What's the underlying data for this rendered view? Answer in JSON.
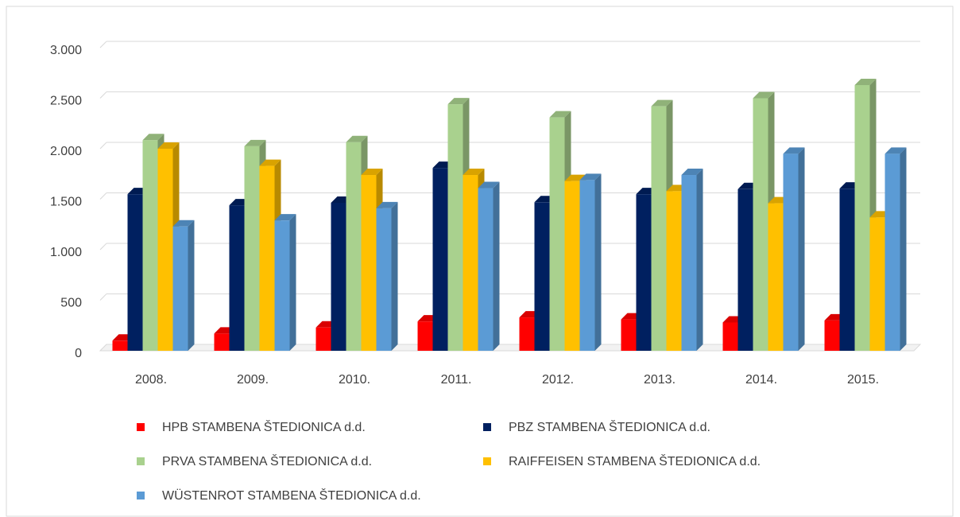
{
  "chart_data": {
    "type": "bar3d",
    "categories": [
      "2008.",
      "2009.",
      "2010.",
      "2011.",
      "2012.",
      "2013.",
      "2014.",
      "2015."
    ],
    "series": [
      {
        "name": "HPB STAMBENA ŠTEDIONICA d.d.",
        "color": "#ff0000",
        "values": [
          100,
          170,
          230,
          290,
          330,
          310,
          280,
          300
        ]
      },
      {
        "name": "PBZ STAMBENA ŠTEDIONICA d.d.",
        "color": "#002060",
        "values": [
          1550,
          1440,
          1465,
          1810,
          1470,
          1550,
          1600,
          1605
        ]
      },
      {
        "name": "PRVA STAMBENA ŠTEDIONICA d.d.",
        "color": "#a9d18e",
        "values": [
          2085,
          2025,
          2065,
          2440,
          2310,
          2420,
          2500,
          2630
        ]
      },
      {
        "name": "RAIFFEISEN STAMBENA ŠTEDIONICA d.d.",
        "color": "#ffc000",
        "values": [
          2000,
          1830,
          1740,
          1740,
          1680,
          1580,
          1460,
          1320
        ]
      },
      {
        "name": "WÜSTENROT STAMBENA ŠTEDIONICA d.d.",
        "color": "#5b9bd5",
        "values": [
          1230,
          1290,
          1410,
          1610,
          1690,
          1740,
          1950,
          1950
        ]
      }
    ],
    "ylim": [
      0,
      3000
    ],
    "yticks": [
      0,
      500,
      {
        "value": 1000,
        "label": "1.000"
      },
      {
        "value": 1500,
        "label": "1.500"
      },
      {
        "value": 2000,
        "label": "2.000"
      },
      {
        "value": 2500,
        "label": "2.500"
      },
      {
        "value": 3000,
        "label": "3.000"
      }
    ],
    "grid": true
  }
}
